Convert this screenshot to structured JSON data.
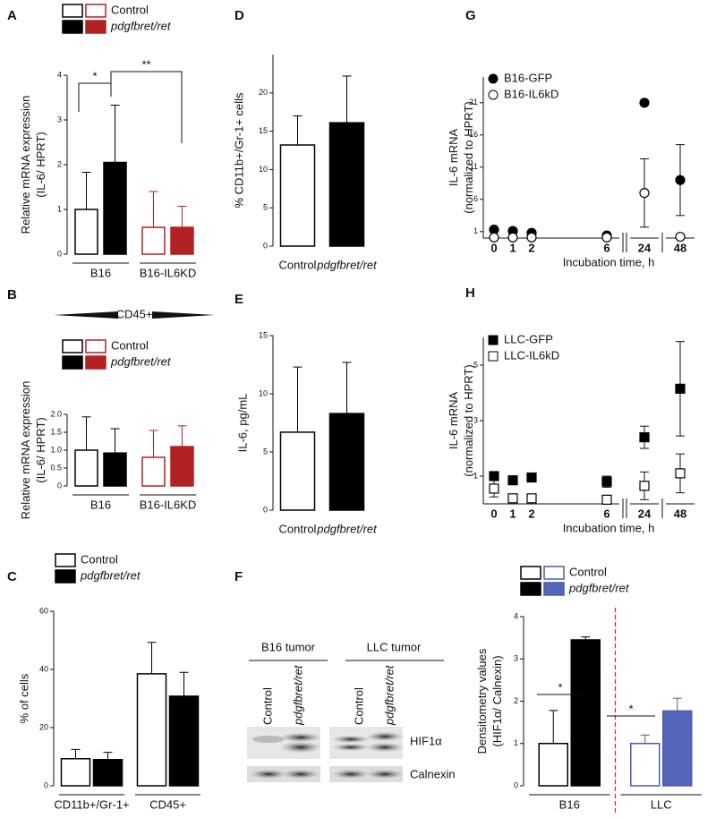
{
  "chart_data": [
    {
      "type": "bar",
      "label": "A",
      "ylabel": [
        "Relative mRNA expression",
        "(IL-6/ HPRT)"
      ],
      "categories": [
        "B16",
        "B16-IL6KD"
      ],
      "ylim": [
        0,
        4
      ],
      "yticks": [
        0,
        1,
        2,
        3,
        4
      ],
      "series": [
        {
          "name": "Control",
          "colors": [
            "#000000",
            "#b22222"
          ],
          "fills": [
            "#ffffff",
            "#ffffff"
          ],
          "values": [
            1.0,
            0.6
          ],
          "errors": [
            0.83,
            0.8
          ]
        },
        {
          "name": "pdgfbret/ret",
          "colors": [
            "#000000",
            "#b22222"
          ],
          "fills": [
            "#000000",
            "#b22222"
          ],
          "values": [
            2.05,
            0.6
          ],
          "errors": [
            1.28,
            0.47
          ]
        }
      ],
      "annotations": [
        "*",
        "**"
      ]
    },
    {
      "type": "bar",
      "label": "B",
      "title": "CD45+",
      "ylabel": [
        "Relative mRNA expression",
        "(IL-6/ HPRT)"
      ],
      "categories": [
        "B16",
        "B16-IL6KD"
      ],
      "ylim": [
        0,
        2
      ],
      "yticks": [
        0,
        0.5,
        {
          "value": 1,
          "label": "1.0"
        },
        1.5,
        {
          "value": 2,
          "label": "2.0"
        }
      ],
      "series": [
        {
          "name": "Control",
          "colors": [
            "#000000",
            "#b22222"
          ],
          "fills": [
            "#ffffff",
            "#ffffff"
          ],
          "values": [
            1.0,
            0.8
          ],
          "errors": [
            0.93,
            0.75
          ]
        },
        {
          "name": "pdgfbret/ret",
          "colors": [
            "#000000",
            "#b22222"
          ],
          "fills": [
            "#000000",
            "#b22222"
          ],
          "values": [
            0.92,
            1.1
          ],
          "errors": [
            0.68,
            0.58
          ]
        }
      ]
    },
    {
      "type": "bar",
      "label": "C",
      "ylabel": [
        "% of cells"
      ],
      "categories": [
        "CD11b+/Gr-1+",
        "CD45+"
      ],
      "ylim": [
        0,
        60
      ],
      "yticks": [
        0,
        20,
        40,
        60
      ],
      "series": [
        {
          "name": "Control",
          "colors": [
            "#000000",
            "#000000"
          ],
          "fills": [
            "#ffffff",
            "#ffffff"
          ],
          "values": [
            9.3,
            38.5
          ],
          "errors": [
            3.2,
            10.8
          ]
        },
        {
          "name": "pdgfbret/ret",
          "colors": [
            "#000000",
            "#000000"
          ],
          "fills": [
            "#000000",
            "#000000"
          ],
          "values": [
            9.0,
            30.8
          ],
          "errors": [
            2.5,
            8.2
          ]
        }
      ]
    },
    {
      "type": "bar",
      "label": "D",
      "ylabel": [
        "% CD11b+/Gr-1+ cells"
      ],
      "categories": [
        "Control",
        "pdgfbret/ret"
      ],
      "ylim": [
        0,
        25
      ],
      "yticks": [
        0,
        5,
        10,
        15,
        20
      ],
      "series": [
        {
          "colors": [
            "#000000",
            "#000000"
          ],
          "fills": [
            "#ffffff",
            "#000000"
          ],
          "values": [
            13.2,
            16.1
          ],
          "errors": [
            3.8,
            6.1
          ]
        }
      ]
    },
    {
      "type": "bar",
      "label": "E",
      "ylabel": [
        "IL-6, pg/mL"
      ],
      "categories": [
        "Control",
        "pdgfbret/ret"
      ],
      "ylim": [
        0,
        15
      ],
      "yticks": [
        0,
        5,
        10,
        15
      ],
      "series": [
        {
          "colors": [
            "#000000",
            "#000000"
          ],
          "fills": [
            "#ffffff",
            "#000000"
          ],
          "values": [
            6.7,
            8.3
          ],
          "errors": [
            5.6,
            4.4
          ]
        }
      ]
    },
    {
      "type": "bar",
      "label": "F",
      "ylabel": [
        "Densitometry values",
        "(HIF1α/ Calnexin)"
      ],
      "categories": [
        "B16",
        "LLC"
      ],
      "ylim": [
        0,
        4
      ],
      "yticks": [
        0,
        1,
        2,
        3,
        4
      ],
      "series": [
        {
          "name": "Control",
          "colors": [
            "#000000",
            "#4a5ab0"
          ],
          "fills": [
            "#ffffff",
            "#ffffff"
          ],
          "values": [
            1.0,
            1.0
          ],
          "errors": [
            0.78,
            0.2
          ]
        },
        {
          "name": "pdgfbret/ret",
          "colors": [
            "#000000",
            "#4a5ab0"
          ],
          "fills": [
            "#000000",
            "#5565b8"
          ],
          "values": [
            3.45,
            1.77
          ],
          "errors": [
            0.07,
            0.3
          ]
        }
      ],
      "annotations": [
        "*",
        "*"
      ]
    },
    {
      "type": "scatter",
      "label": "G",
      "ylabel": [
        "IL-6 mRNA",
        "(normalized to HPRT)"
      ],
      "xlabel": "Incubation time, h",
      "x": [
        0,
        1,
        2,
        6,
        24,
        48
      ],
      "xticks": [
        0,
        1,
        2,
        6,
        24,
        48
      ],
      "ylim": [
        0,
        25
      ],
      "yticks": [
        1,
        6,
        11,
        16,
        21
      ],
      "series": [
        {
          "name": "B16-GFP",
          "marker": "circle",
          "filled": true,
          "values": [
            1.3,
            1.1,
            0.8,
            0.4,
            21,
            9
          ],
          "errors": [
            null,
            null,
            null,
            null,
            null,
            5.5
          ]
        },
        {
          "name": "B16-IL6kD",
          "marker": "circle",
          "filled": false,
          "values": [
            0.1,
            0.1,
            0.1,
            0.1,
            7,
            0.2
          ],
          "errors": [
            null,
            null,
            null,
            null,
            5.3,
            null
          ]
        }
      ]
    },
    {
      "type": "scatter",
      "label": "H",
      "ylabel": [
        "IL-6 mRNA",
        "(normalized to HPRT)"
      ],
      "xlabel": "Incubation time, h",
      "x": [
        0,
        1,
        2,
        6,
        24,
        48
      ],
      "xticks": [
        0,
        1,
        2,
        6,
        24,
        48
      ],
      "ylim": [
        0,
        6
      ],
      "yticks": [
        1,
        3,
        5
      ],
      "series": [
        {
          "name": "LLC-GFP",
          "marker": "square",
          "filled": true,
          "values": [
            1.0,
            0.85,
            0.95,
            0.8,
            2.4,
            4.15
          ],
          "errors": [
            null,
            0.15,
            null,
            0.2,
            0.4,
            1.7
          ]
        },
        {
          "name": "LLC-IL6kD",
          "marker": "square",
          "filled": false,
          "values": [
            0.55,
            0.2,
            0.2,
            0.15,
            0.65,
            1.1
          ],
          "errors": [
            0.3,
            null,
            null,
            null,
            0.5,
            0.7
          ]
        }
      ]
    }
  ],
  "blot": {
    "groups": [
      "B16 tumor",
      "LLC tumor"
    ],
    "lanes": [
      "Control",
      "pdgfbret/ret",
      "Control",
      "pdgfbret/ret"
    ],
    "rows": [
      "HIF1α",
      "Calnexin"
    ]
  }
}
